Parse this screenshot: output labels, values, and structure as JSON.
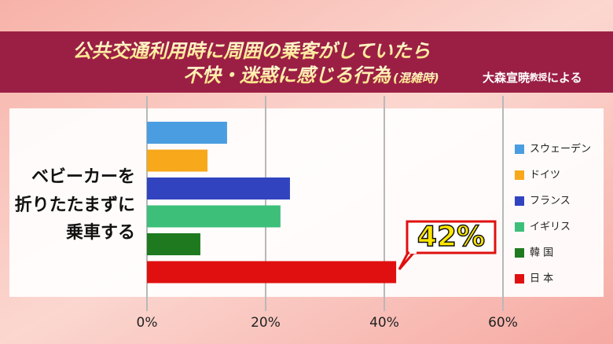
{
  "chart_data": {
    "type": "hbar",
    "title": "公共交通利用時に周囲の乗客がしていたら",
    "title_line2": "不快・迷惑に感じる行為",
    "title_note": "(混雑時)",
    "source": [
      "大森宣暁",
      "教授",
      "による"
    ],
    "category_lines": [
      "ベビーカーを",
      "折りたたまずに",
      "乗車する"
    ],
    "series": [
      {
        "name": "スウェーデン",
        "color": "#4a9de0",
        "values": [
          13.5
        ]
      },
      {
        "name": "ドイツ",
        "color": "#f7a81b",
        "values": [
          10.2
        ]
      },
      {
        "name": "フランス",
        "color": "#3243c0",
        "values": [
          24.1
        ]
      },
      {
        "name": "イギリス",
        "color": "#3dbf7a",
        "values": [
          22.5
        ]
      },
      {
        "name": "韓 国",
        "color": "#1f7a1f",
        "values": [
          9
        ]
      },
      {
        "name": "日 本",
        "color": "#e01010",
        "values": [
          42
        ],
        "value_labels": [
          "42%"
        ]
      }
    ],
    "xlim": [
      0,
      60
    ],
    "xticks": [
      {
        "value": 0,
        "label": "0%"
      },
      {
        "value": 20,
        "label": "20%"
      },
      {
        "value": 40,
        "label": "40%"
      },
      {
        "value": 60,
        "label": "60%"
      }
    ],
    "highlight_tick_color": "#c0202a",
    "grid": true
  }
}
